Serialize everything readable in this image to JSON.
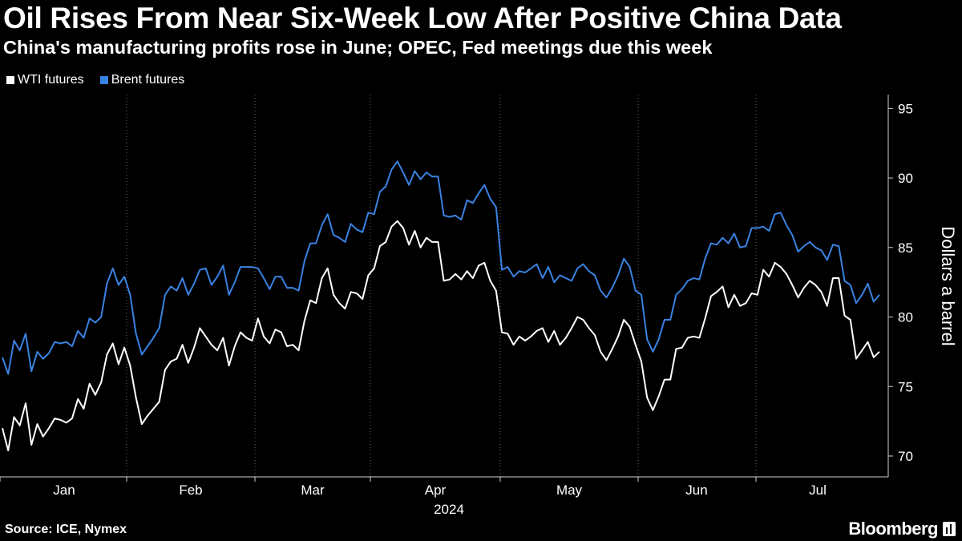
{
  "header": {
    "title": "Oil Rises From Near Six-Week Low After Positive China Data",
    "subtitle": "China's manufacturing profits rose in June; OPEC, Fed meetings due this week"
  },
  "footer": {
    "source": "Source: ICE, Nymex",
    "brand": "Bloomberg"
  },
  "chart_data": {
    "type": "line",
    "ylabel": "Dollars a barrel",
    "y_axis_side": "right",
    "ylim": [
      68.5,
      96
    ],
    "yticks": [
      "70",
      "75",
      "80",
      "85",
      "90",
      "95"
    ],
    "ytick_values": [
      70,
      75,
      80,
      85,
      90,
      95
    ],
    "month_ticks": [
      "Jan",
      "Feb",
      "Mar",
      "Apr",
      "May",
      "Jun",
      "Jul"
    ],
    "year_label": "2024",
    "grid": "vertical dotted lines at month boundaries",
    "legend_position": "top-left",
    "series": [
      {
        "name": "WTI futures",
        "color": "#ffffff",
        "values": [
          72.0,
          70.4,
          72.8,
          72.2,
          73.8,
          70.8,
          72.3,
          71.4,
          72.0,
          72.7,
          72.6,
          72.4,
          72.7,
          74.1,
          73.4,
          75.2,
          74.4,
          75.3,
          77.3,
          78.1,
          76.6,
          77.8,
          76.5,
          74.2,
          72.3,
          72.9,
          73.4,
          73.9,
          76.2,
          76.8,
          77.0,
          78.0,
          76.7,
          77.8,
          79.2,
          78.6,
          78.0,
          77.6,
          78.5,
          76.5,
          77.9,
          78.9,
          78.5,
          78.3,
          79.9,
          78.6,
          78.1,
          79.1,
          78.9,
          77.9,
          78.0,
          77.6,
          79.7,
          81.2,
          81.0,
          82.8,
          83.5,
          81.6,
          81.0,
          80.6,
          81.8,
          81.7,
          81.3,
          83.0,
          83.5,
          85.1,
          85.4,
          86.5,
          86.9,
          86.4,
          85.2,
          86.2,
          85.0,
          85.7,
          85.4,
          85.4,
          82.6,
          82.7,
          83.1,
          82.7,
          83.3,
          82.8,
          83.7,
          83.9,
          82.6,
          81.9,
          78.9,
          78.8,
          78.0,
          78.6,
          78.3,
          78.6,
          79.0,
          79.2,
          78.2,
          79.0,
          78.0,
          78.5,
          79.2,
          80.0,
          79.8,
          79.2,
          78.7,
          77.5,
          76.9,
          77.7,
          78.6,
          79.8,
          79.3,
          78.0,
          76.8,
          74.2,
          73.3,
          74.3,
          75.5,
          75.5,
          77.7,
          77.8,
          78.5,
          78.6,
          78.5,
          79.9,
          81.5,
          81.8,
          82.2,
          80.7,
          81.6,
          80.8,
          81.0,
          81.7,
          81.6,
          83.4,
          82.9,
          83.9,
          83.6,
          83.1,
          82.3,
          81.4,
          82.1,
          82.6,
          82.3,
          81.8,
          80.8,
          82.8,
          82.8,
          80.1,
          79.8,
          77.0,
          77.6,
          78.2,
          77.1,
          77.5
        ]
      },
      {
        "name": "Brent futures",
        "color": "#3a82e2",
        "values": [
          77.1,
          75.9,
          78.3,
          77.6,
          78.8,
          76.1,
          77.5,
          77.0,
          77.4,
          78.2,
          78.1,
          78.2,
          77.9,
          79.0,
          78.5,
          79.9,
          79.6,
          80.0,
          82.4,
          83.5,
          82.3,
          82.9,
          81.6,
          78.8,
          77.3,
          77.9,
          78.5,
          79.2,
          81.6,
          82.2,
          81.9,
          82.8,
          81.6,
          82.4,
          83.4,
          83.5,
          82.3,
          82.9,
          83.7,
          81.6,
          82.5,
          83.6,
          83.6,
          83.6,
          83.5,
          82.8,
          82.0,
          82.9,
          82.9,
          82.1,
          82.1,
          81.9,
          84.0,
          85.3,
          85.3,
          86.6,
          87.4,
          85.9,
          85.7,
          85.4,
          86.7,
          86.3,
          86.1,
          87.5,
          87.4,
          89.0,
          89.4,
          90.6,
          91.2,
          90.4,
          89.5,
          90.5,
          89.9,
          90.4,
          90.1,
          90.1,
          87.3,
          87.2,
          87.3,
          87.0,
          88.4,
          88.2,
          88.9,
          89.5,
          88.5,
          87.9,
          83.4,
          83.6,
          82.9,
          83.3,
          83.2,
          83.5,
          83.8,
          82.8,
          83.6,
          82.5,
          83.0,
          82.8,
          82.6,
          83.5,
          83.8,
          83.3,
          83.0,
          81.9,
          81.4,
          82.1,
          83.0,
          84.2,
          83.6,
          81.9,
          81.6,
          78.4,
          77.5,
          78.4,
          79.8,
          79.8,
          81.6,
          82.0,
          82.6,
          82.8,
          82.7,
          84.2,
          85.3,
          85.2,
          85.7,
          85.3,
          86.0,
          85.0,
          85.1,
          86.4,
          86.4,
          86.5,
          86.2,
          87.4,
          87.5,
          86.6,
          85.9,
          84.7,
          85.1,
          85.4,
          85.0,
          84.8,
          84.1,
          85.2,
          85.1,
          82.6,
          82.3,
          81.0,
          81.6,
          82.4,
          81.1,
          81.6
        ]
      }
    ]
  }
}
